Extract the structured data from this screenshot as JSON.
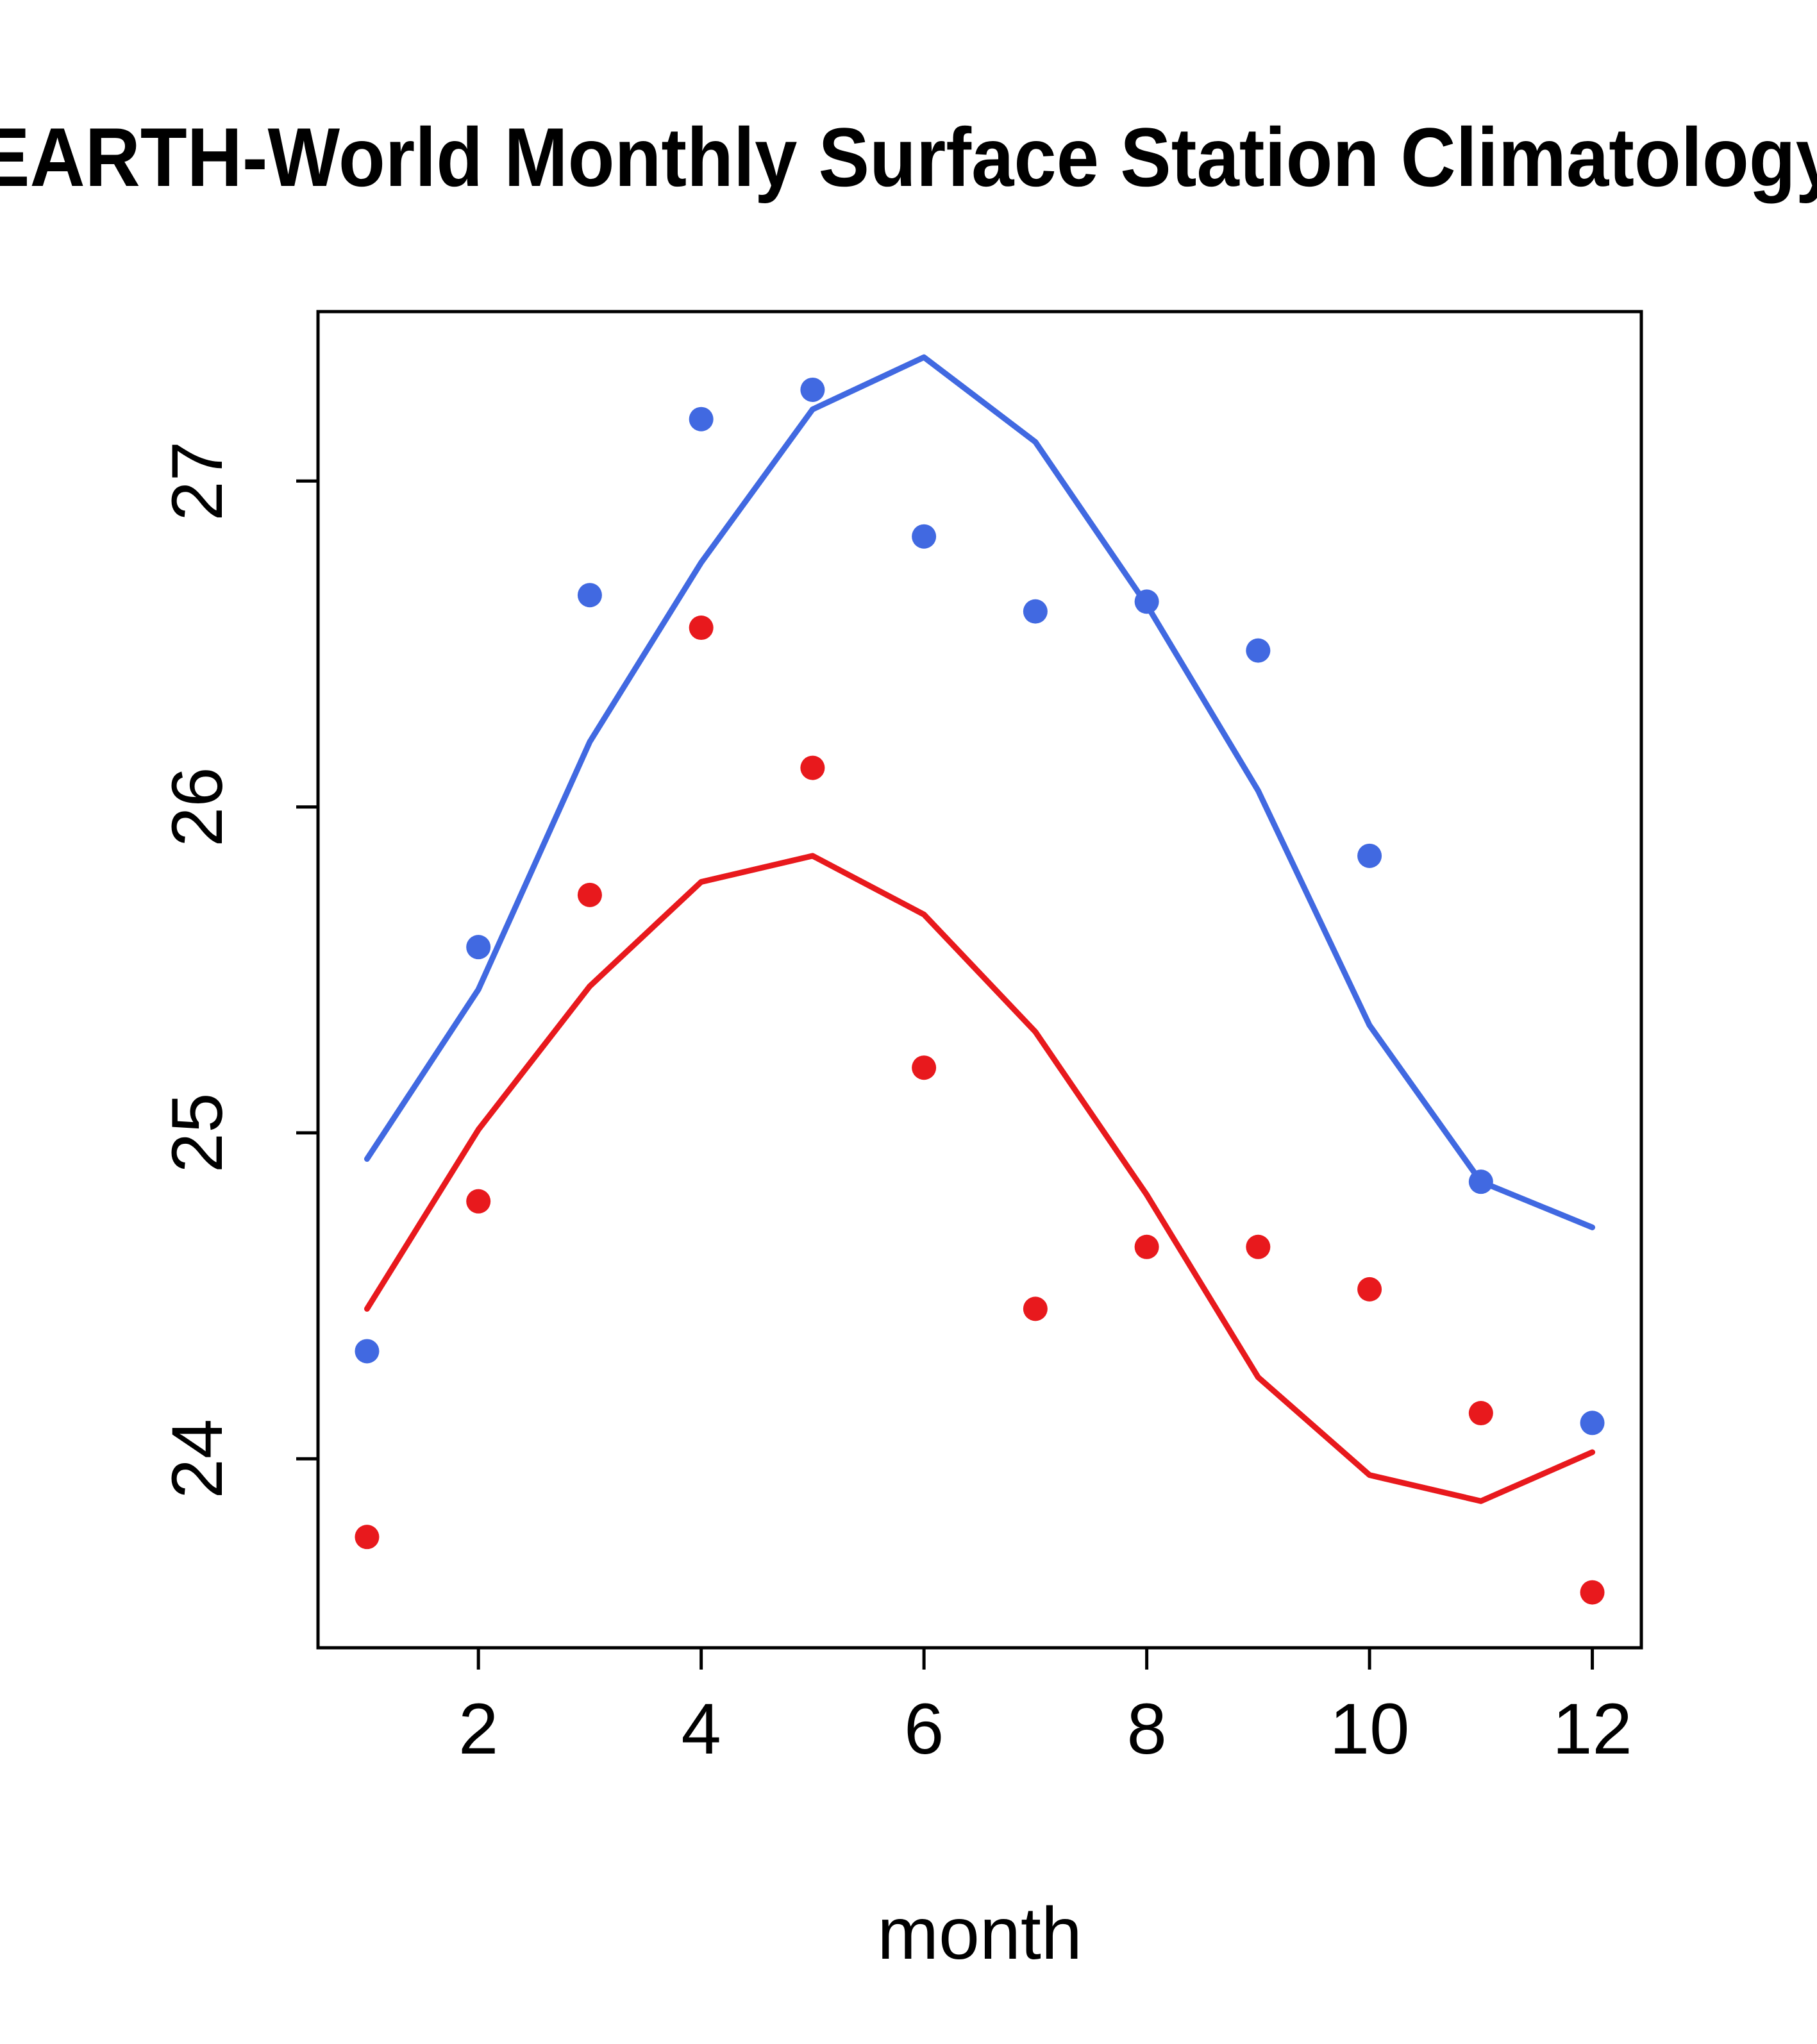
{
  "chart_data": {
    "type": "line",
    "title": "EARTH-World Monthly Surface Station Climatology",
    "xlabel": "month",
    "ylabel": "",
    "x": [
      1,
      2,
      3,
      4,
      5,
      6,
      7,
      8,
      9,
      10,
      11,
      12
    ],
    "xlim": [
      0.56,
      12.44
    ],
    "ylim": [
      23.42,
      27.52
    ],
    "x_ticks": [
      2,
      4,
      6,
      8,
      10,
      12
    ],
    "y_ticks": [
      24,
      25,
      26,
      27
    ],
    "grid": false,
    "legend": "none",
    "colors": {
      "blue": "#4169E1",
      "red": "#E8191D",
      "axis": "#000000"
    },
    "series": [
      {
        "name": "blue-line-fit",
        "style": "line",
        "color": "#4169E1",
        "values": [
          24.92,
          25.44,
          26.2,
          26.75,
          27.22,
          27.38,
          27.12,
          26.62,
          26.05,
          25.33,
          24.85,
          24.71
        ]
      },
      {
        "name": "red-line-fit",
        "style": "line",
        "color": "#E8191D",
        "values": [
          24.46,
          25.01,
          25.45,
          25.77,
          25.85,
          25.67,
          25.31,
          24.81,
          24.25,
          23.95,
          23.87,
          24.02
        ]
      },
      {
        "name": "blue-points-monthly",
        "style": "points",
        "color": "#4169E1",
        "values": [
          24.33,
          25.57,
          26.65,
          27.19,
          27.28,
          26.83,
          26.6,
          26.63,
          26.48,
          25.85,
          24.85,
          24.11
        ]
      },
      {
        "name": "red-points-monthly",
        "style": "points",
        "color": "#E8191D",
        "values": [
          23.76,
          24.79,
          25.73,
          26.55,
          26.12,
          25.2,
          24.46,
          24.65,
          24.65,
          24.52,
          24.14,
          23.59
        ]
      }
    ]
  }
}
